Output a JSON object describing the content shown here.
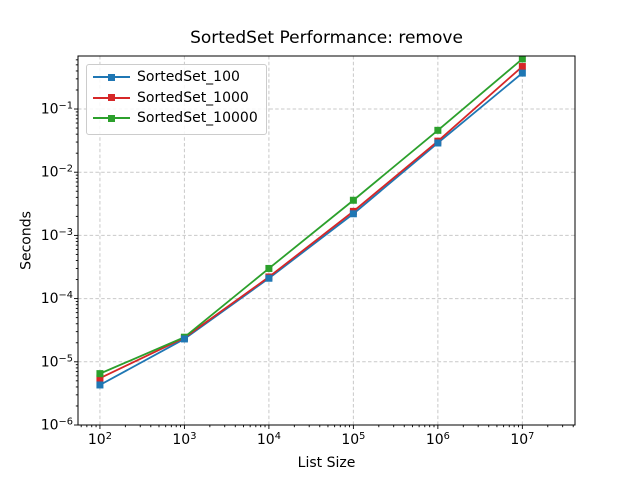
{
  "chart_data": {
    "type": "line",
    "title": "SortedSet Performance: remove",
    "xlabel": "List Size",
    "ylabel": "Seconds",
    "xscale": "log",
    "yscale": "log",
    "grid": true,
    "grid_color": "#c9c9c9",
    "axis_color": "#000000",
    "background": "#ffffff",
    "legend_position": "upper left",
    "marker": "square",
    "x": [
      100,
      1000,
      10000,
      100000,
      1000000,
      10000000
    ],
    "series": [
      {
        "name": "SortedSet_100",
        "color": "#1f77b4",
        "values": [
          4.3e-06,
          2.3e-05,
          0.00021,
          0.0022,
          0.029,
          0.37
        ]
      },
      {
        "name": "SortedSet_1000",
        "color": "#d62728",
        "values": [
          5.5e-06,
          2.4e-05,
          0.00022,
          0.0024,
          0.031,
          0.47
        ]
      },
      {
        "name": "SortedSet_10000",
        "color": "#2ca02c",
        "values": [
          6.5e-06,
          2.45e-05,
          0.0003,
          0.0036,
          0.046,
          0.62
        ]
      }
    ],
    "xlim": [
      55,
      42000000
    ],
    "ylim": [
      1e-06,
      0.69
    ],
    "xtick_exponents": [
      2,
      3,
      4,
      5,
      6,
      7
    ],
    "ytick_exponents": [
      -6,
      -5,
      -4,
      -3,
      -2,
      -1
    ],
    "tick_label_base": "10"
  }
}
